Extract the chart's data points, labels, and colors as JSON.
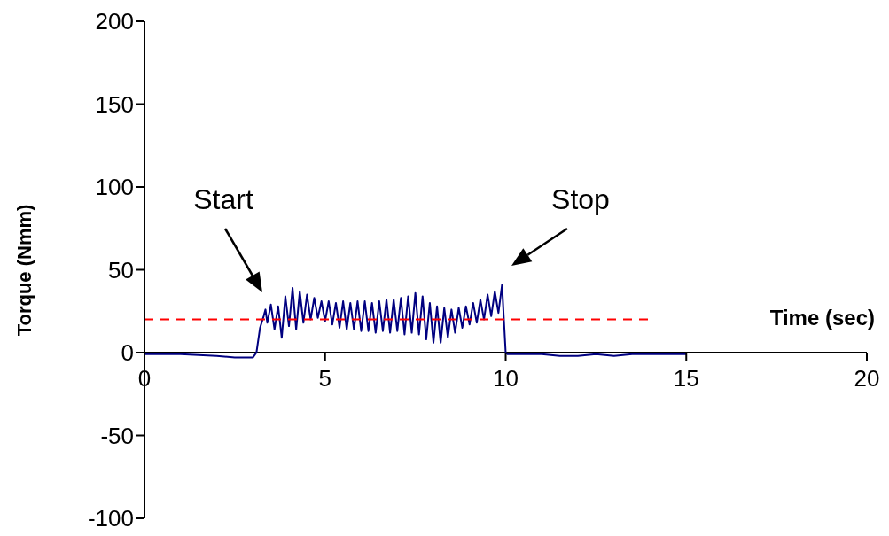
{
  "chart_data": {
    "type": "line",
    "xlabel": "Time (sec)",
    "ylabel": "Torque (Nmm)",
    "xlim": [
      0,
      20
    ],
    "xticks": [
      0,
      5,
      10,
      15,
      20
    ],
    "ylim": [
      -100,
      200
    ],
    "yticks": [
      -100,
      -50,
      0,
      50,
      100,
      150,
      200
    ],
    "marker": "none",
    "series": [
      {
        "color": "#000080",
        "line_style": "solid",
        "x": [
          0,
          1,
          2,
          2.5,
          3,
          3.1,
          3.2,
          3.3,
          3.35,
          3.4,
          3.5,
          3.6,
          3.7,
          3.8,
          3.9,
          4,
          4.1,
          4.2,
          4.3,
          4.4,
          4.5,
          4.6,
          4.7,
          4.8,
          4.9,
          5,
          5.1,
          5.2,
          5.3,
          5.4,
          5.5,
          5.6,
          5.7,
          5.8,
          5.9,
          6,
          6.1,
          6.2,
          6.3,
          6.4,
          6.5,
          6.6,
          6.7,
          6.8,
          6.9,
          7,
          7.1,
          7.2,
          7.3,
          7.4,
          7.5,
          7.6,
          7.7,
          7.8,
          7.9,
          8,
          8.1,
          8.2,
          8.3,
          8.4,
          8.5,
          8.6,
          8.7,
          8.8,
          8.9,
          9,
          9.1,
          9.2,
          9.3,
          9.4,
          9.5,
          9.6,
          9.7,
          9.8,
          9.9,
          9.95,
          10,
          10.05,
          11,
          11.5,
          12,
          12.5,
          13,
          13.5,
          14,
          14.5,
          15
        ],
        "values": [
          -1,
          -1,
          -2,
          -3,
          -3,
          0,
          15,
          22,
          26,
          18,
          29,
          14,
          28,
          9,
          34,
          16,
          39,
          14,
          37,
          18,
          35,
          20,
          33,
          21,
          31,
          19,
          31,
          17,
          30,
          15,
          31,
          14,
          30,
          14,
          31,
          13,
          31,
          13,
          30,
          12,
          31,
          13,
          32,
          12,
          32,
          13,
          33,
          11,
          34,
          12,
          36,
          11,
          34,
          8,
          30,
          6,
          28,
          6,
          27,
          9,
          26,
          12,
          27,
          15,
          28,
          17,
          30,
          18,
          32,
          20,
          35,
          22,
          37,
          24,
          41,
          20,
          0,
          -1,
          -1,
          -2,
          -2,
          -1,
          -2,
          -1,
          -1,
          -1,
          -1
        ]
      },
      {
        "color": "#ff0000",
        "line_style": "dashed",
        "x": [
          0,
          14
        ],
        "values": [
          20,
          20
        ]
      }
    ],
    "annotations": [
      "Start",
      "Stop"
    ]
  }
}
